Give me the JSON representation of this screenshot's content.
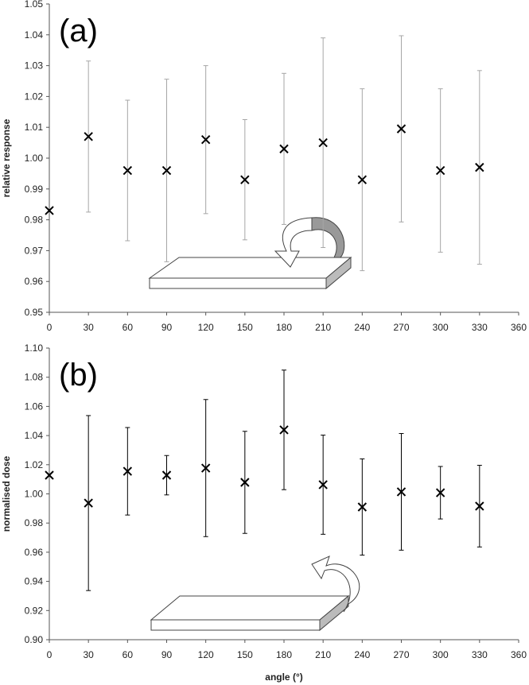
{
  "chart_data": [
    {
      "type": "scatter",
      "panel_label": "(a)",
      "ylabel": "relative response",
      "x": [
        0,
        30,
        60,
        90,
        120,
        150,
        180,
        210,
        240,
        270,
        300,
        330
      ],
      "series": [
        {
          "color": "#000000",
          "error_color": "#a6a6a6",
          "values": [
            0.983,
            1.007,
            0.996,
            0.996,
            1.006,
            0.993,
            1.003,
            1.005,
            0.993,
            1.0095,
            0.996,
            0.997
          ],
          "errors": [
            null,
            0.0245,
            0.0228,
            0.0296,
            0.024,
            0.0195,
            0.0245,
            0.034,
            0.0295,
            0.0302,
            0.0265,
            0.0314
          ]
        }
      ],
      "xlim": [
        0,
        360
      ],
      "xticks": [
        0,
        30,
        60,
        90,
        120,
        150,
        180,
        210,
        240,
        270,
        300,
        330,
        360
      ],
      "ylim": [
        0.95,
        1.05
      ],
      "yticks": [
        0.95,
        0.96,
        0.97,
        0.98,
        0.99,
        {
          "value": 1,
          "label": "1.00"
        },
        1.01,
        1.02,
        1.03,
        1.04,
        1.05
      ]
    },
    {
      "type": "scatter",
      "panel_label": "(b)",
      "ylabel": "normalised dose",
      "xlabel": "angle (°)",
      "x": [
        0,
        30,
        60,
        90,
        120,
        150,
        180,
        210,
        240,
        270,
        300,
        330
      ],
      "series": [
        {
          "color": "#000000",
          "error_color": "#000000",
          "values": [
            1.0128,
            0.9937,
            1.0155,
            1.0128,
            1.0177,
            1.0079,
            1.0439,
            1.0063,
            0.991,
            1.0014,
            1.0008,
            0.9916
          ],
          "errors": [
            null,
            0.06,
            0.03,
            0.0135,
            0.047,
            0.035,
            0.041,
            0.034,
            0.033,
            0.04,
            0.018,
            0.028
          ]
        }
      ],
      "xlim": [
        0,
        360
      ],
      "xticks": [
        0,
        30,
        60,
        90,
        120,
        150,
        180,
        210,
        240,
        270,
        300,
        330,
        360
      ],
      "ylim": [
        0.9,
        1.1
      ],
      "yticks": [
        {
          "value": 0.9,
          "label": "0.90"
        },
        0.92,
        0.94,
        0.96,
        0.98,
        {
          "value": 1,
          "label": "1.00"
        },
        1.02,
        1.04,
        1.06,
        1.08,
        {
          "value": 1.1,
          "label": "1.10"
        }
      ]
    }
  ]
}
